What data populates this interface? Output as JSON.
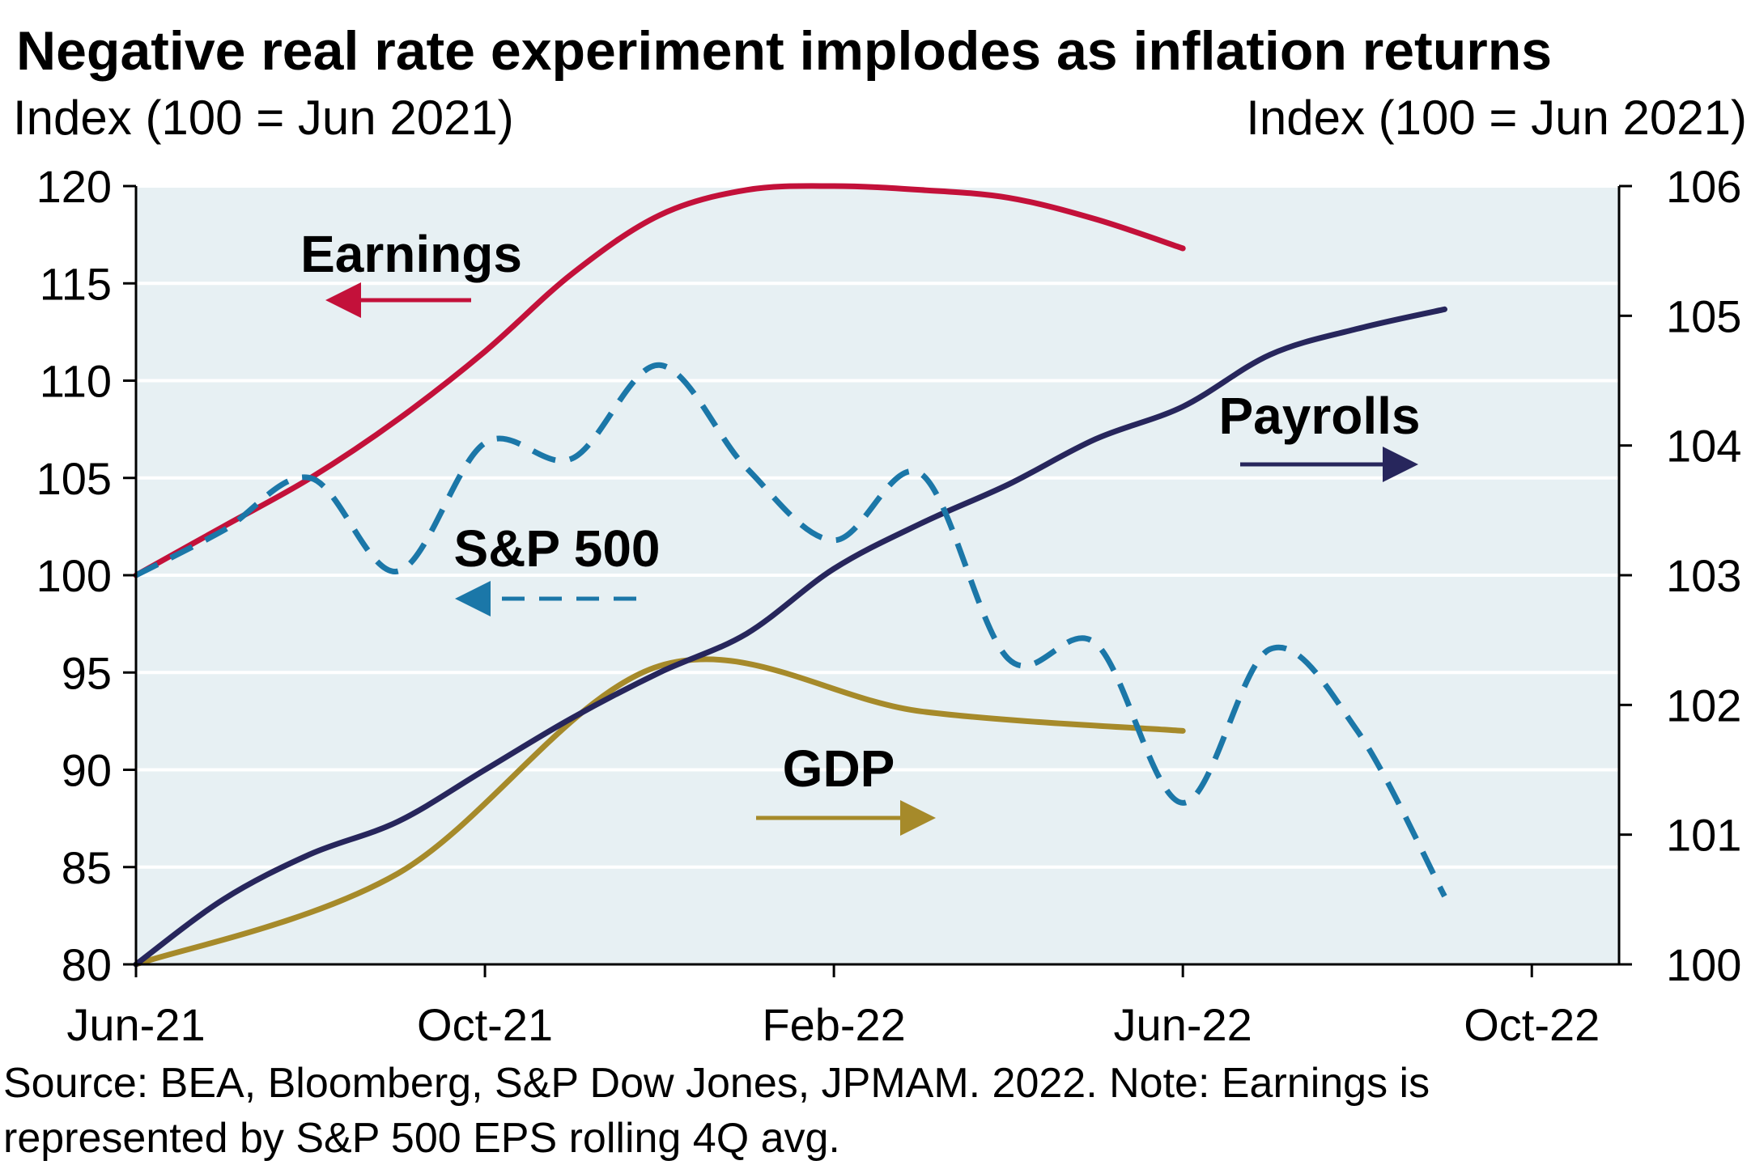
{
  "chart_data": {
    "type": "line",
    "title": "Negative real rate experiment implodes as inflation returns",
    "left_axis_label": "Index (100 = Jun 2021)",
    "right_axis_label": "Index (100 = Jun 2021)",
    "left_ylim": [
      80,
      120
    ],
    "left_yticks": [
      80,
      85,
      90,
      95,
      100,
      105,
      110,
      115,
      120
    ],
    "right_ylim": [
      100,
      106
    ],
    "right_yticks": [
      100,
      101,
      102,
      103,
      104,
      105,
      106
    ],
    "x_range": [
      "2021-06",
      "2022-11"
    ],
    "x_ticks": [
      {
        "date": "2021-06",
        "label": "Jun-21"
      },
      {
        "date": "2021-10",
        "label": "Oct-21"
      },
      {
        "date": "2022-02",
        "label": "Feb-22"
      },
      {
        "date": "2022-06",
        "label": "Jun-22"
      },
      {
        "date": "2022-10",
        "label": "Oct-22"
      }
    ],
    "grid": true,
    "series": [
      {
        "name": "Earnings",
        "axis": "left",
        "style": "solid",
        "color": "#c3113a",
        "arrow": "left",
        "points": [
          {
            "x": "2021-06-01",
            "y": 100.0
          },
          {
            "x": "2021-07-01",
            "y": 102.5
          },
          {
            "x": "2021-08-01",
            "y": 105.0
          },
          {
            "x": "2021-09-01",
            "y": 108.0
          },
          {
            "x": "2021-10-01",
            "y": 111.5
          },
          {
            "x": "2021-11-01",
            "y": 115.5
          },
          {
            "x": "2021-12-01",
            "y": 118.5
          },
          {
            "x": "2022-01-01",
            "y": 119.8
          },
          {
            "x": "2022-02-01",
            "y": 120.0
          },
          {
            "x": "2022-03-01",
            "y": 119.8
          },
          {
            "x": "2022-04-01",
            "y": 119.4
          },
          {
            "x": "2022-05-01",
            "y": 118.3
          },
          {
            "x": "2022-06-01",
            "y": 116.8
          }
        ]
      },
      {
        "name": "S&P 500",
        "axis": "left",
        "style": "dashed",
        "color": "#1b77a8",
        "arrow": "left",
        "points": [
          {
            "x": "2021-06-01",
            "y": 100.0
          },
          {
            "x": "2021-07-01",
            "y": 102.3
          },
          {
            "x": "2021-08-01",
            "y": 105.0
          },
          {
            "x": "2021-09-01",
            "y": 100.2
          },
          {
            "x": "2021-10-01",
            "y": 106.8
          },
          {
            "x": "2021-11-01",
            "y": 106.0
          },
          {
            "x": "2021-12-01",
            "y": 110.8
          },
          {
            "x": "2022-01-01",
            "y": 105.5
          },
          {
            "x": "2022-02-01",
            "y": 101.8
          },
          {
            "x": "2022-03-01",
            "y": 105.2
          },
          {
            "x": "2022-04-01",
            "y": 95.7
          },
          {
            "x": "2022-05-01",
            "y": 96.5
          },
          {
            "x": "2022-06-01",
            "y": 88.3
          },
          {
            "x": "2022-07-01",
            "y": 96.2
          },
          {
            "x": "2022-08-01",
            "y": 92.0
          },
          {
            "x": "2022-09-01",
            "y": 83.5
          }
        ]
      },
      {
        "name": "Payrolls",
        "axis": "right",
        "style": "solid",
        "color": "#27265c",
        "arrow": "right",
        "points": [
          {
            "x": "2021-06-01",
            "y": 100.0
          },
          {
            "x": "2021-07-01",
            "y": 100.5
          },
          {
            "x": "2021-08-01",
            "y": 100.85
          },
          {
            "x": "2021-09-01",
            "y": 101.1
          },
          {
            "x": "2021-10-01",
            "y": 101.5
          },
          {
            "x": "2021-11-01",
            "y": 101.9
          },
          {
            "x": "2021-12-01",
            "y": 102.25
          },
          {
            "x": "2022-01-01",
            "y": 102.55
          },
          {
            "x": "2022-02-01",
            "y": 103.05
          },
          {
            "x": "2022-03-01",
            "y": 103.4
          },
          {
            "x": "2022-04-01",
            "y": 103.7
          },
          {
            "x": "2022-05-01",
            "y": 104.05
          },
          {
            "x": "2022-06-01",
            "y": 104.3
          },
          {
            "x": "2022-07-01",
            "y": 104.7
          },
          {
            "x": "2022-08-01",
            "y": 104.9
          },
          {
            "x": "2022-09-01",
            "y": 105.05
          }
        ]
      },
      {
        "name": "GDP",
        "axis": "right",
        "style": "solid",
        "color": "#a68a2a",
        "arrow": "right",
        "points": [
          {
            "x": "2021-06-01",
            "y": 100.0
          },
          {
            "x": "2021-09-01",
            "y": 100.7
          },
          {
            "x": "2021-12-01",
            "y": 102.3
          },
          {
            "x": "2022-03-01",
            "y": 101.95
          },
          {
            "x": "2022-06-01",
            "y": 101.8
          }
        ]
      }
    ]
  },
  "footer": {
    "line1": "Source: BEA, Bloomberg, S&P Dow Jones, JPMAM. 2022. Note: Earnings is",
    "line2": "represented by S&P 500 EPS rolling 4Q avg."
  }
}
